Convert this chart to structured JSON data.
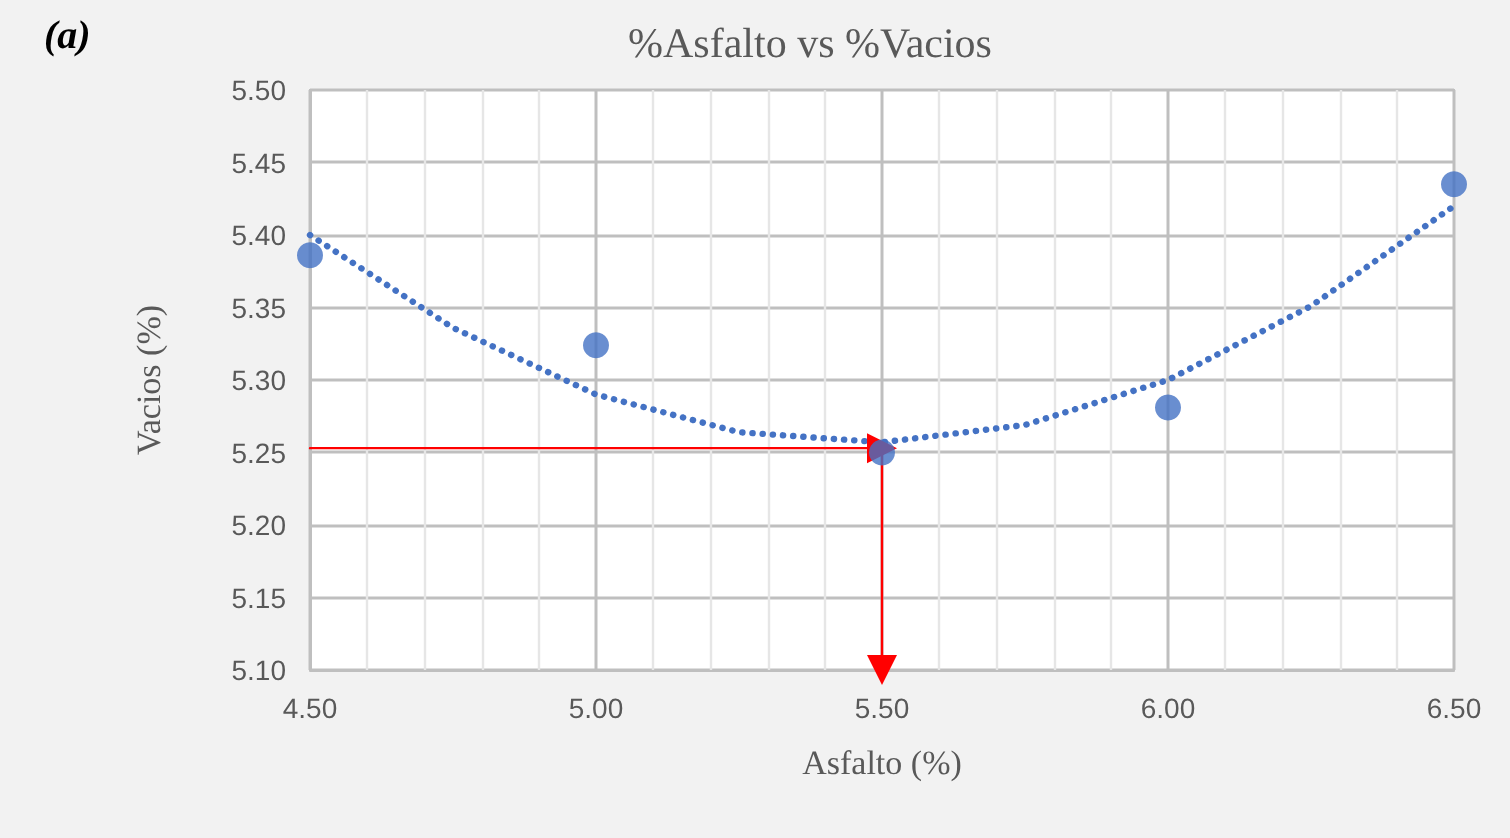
{
  "chart_data": {
    "type": "scatter",
    "title": "%Asfalto vs %Vacios",
    "xlabel": "Asfalto (%)",
    "ylabel": "Vacios (%)",
    "annotations": [
      "(a)"
    ],
    "xlim": [
      4.5,
      6.5
    ],
    "xticks": [
      {
        "value": 4.5,
        "label": "4.50"
      },
      {
        "value": 5,
        "label": "5.00"
      },
      {
        "value": 5.5,
        "label": "5.50"
      },
      {
        "value": 6,
        "label": "6.00"
      },
      {
        "value": 6.5,
        "label": "6.50"
      }
    ],
    "ylim": [
      5.1,
      5.5
    ],
    "yticks": [
      {
        "value": 5.1,
        "label": "5.10"
      },
      {
        "value": 5.15,
        "label": "5.15"
      },
      {
        "value": 5.2,
        "label": "5.20"
      },
      {
        "value": 5.25,
        "label": "5.25"
      },
      {
        "value": 5.3,
        "label": "5.30"
      },
      {
        "value": 5.35,
        "label": "5.35"
      },
      {
        "value": 5.4,
        "label": "5.40"
      },
      {
        "value": 5.45,
        "label": "5.45"
      },
      {
        "value": 5.5,
        "label": "5.50"
      }
    ],
    "grid": true,
    "series": [
      {
        "type": "line",
        "color": "#4472c4",
        "marker": "none",
        "line_style": "dotted",
        "x": [
          4.5,
          4.75,
          5,
          5.25,
          5.5,
          5.75,
          6,
          6.25,
          6.5
        ],
        "values": [
          5.4,
          5.336,
          5.29,
          5.264,
          5.257,
          5.269,
          5.3,
          5.351,
          5.42
        ]
      },
      {
        "color": "#4472c4",
        "marker": "circle",
        "x": [
          4.5,
          5,
          5.5,
          6,
          6.5
        ],
        "values": [
          5.386,
          5.324,
          5.25,
          5.281,
          5.435
        ]
      },
      {
        "type": "line",
        "color": "#ff0000",
        "marker": "triangle",
        "line_style": "solid",
        "x": [
          4.5,
          5.5
        ],
        "values": [
          5.253,
          5.253
        ]
      },
      {
        "type": "line",
        "color": "#ff0000",
        "marker": "triangle",
        "line_style": "solid",
        "x": [
          5.5,
          5.5
        ],
        "values": [
          5.253,
          5.1
        ]
      }
    ]
  }
}
